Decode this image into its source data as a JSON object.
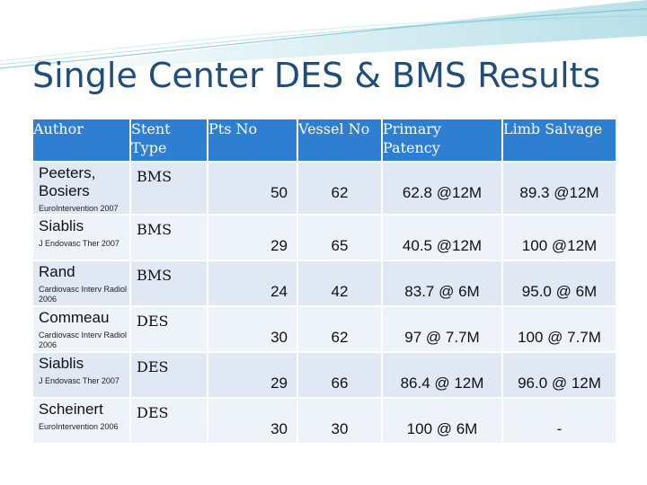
{
  "slide": {
    "title": "Single Center DES & BMS Results"
  },
  "table": {
    "headers": [
      "Author",
      "Stent Type",
      "Pts No",
      "Vessel No",
      "Primary Patency",
      "Limb Salvage"
    ],
    "rows": [
      {
        "author": "Peeters, Bosiers",
        "journal": "EuroIntervention 2007",
        "stent": "BMS",
        "pts": "50",
        "vessel": "62",
        "patency": "62.8 @12M",
        "salvage": "89.3 @12M"
      },
      {
        "author": "Siablis",
        "journal": "J Endovasc Ther 2007",
        "stent": "BMS",
        "pts": "29",
        "vessel": "65",
        "patency": "40.5 @12M",
        "salvage": "100 @12M"
      },
      {
        "author": "Rand",
        "journal": "Cardiovasc Interv Radiol 2006",
        "stent": "BMS",
        "pts": "24",
        "vessel": "42",
        "patency": "83.7 @  6M",
        "salvage": "95.0 @  6M"
      },
      {
        "author": "Commeau",
        "journal": "Cardiovasc Interv Radiol 2006",
        "stent": "DES",
        "pts": "30",
        "vessel": "62",
        "patency": "97 @ 7.7M",
        "salvage": "100 @  7.7M"
      },
      {
        "author": "Siablis",
        "journal": "J Endovasc Ther 2007",
        "stent": "DES",
        "pts": "29",
        "vessel": "66",
        "patency": "86.4 @ 12M",
        "salvage": "96.0 @ 12M"
      },
      {
        "author": "Scheinert",
        "journal": "EuroIntervention 2006",
        "stent": "DES",
        "pts": "30",
        "vessel": "30",
        "patency": "100 @  6M",
        "salvage": "-"
      }
    ]
  },
  "colors": {
    "title": "#1f4e79",
    "header_bg": "#2e7fd1",
    "row_bg": "#dfe8f3",
    "row_alt_bg": "#eef3f9",
    "decoration": "#7fc7d6"
  }
}
